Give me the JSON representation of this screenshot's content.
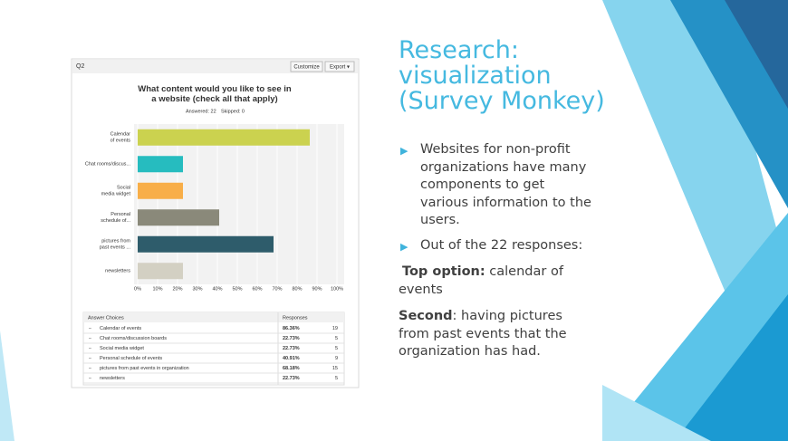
{
  "slide": {
    "title_lines": [
      "Research:",
      "visualization",
      "(Survey Monkey)"
    ],
    "bullets": [
      "Websites for non-profit organizations have many components to get various information to the users.",
      "Out of the 22 responses:"
    ],
    "paragraphs": [
      {
        "label": "Top option:",
        "text": " calendar of events"
      },
      {
        "label": "Second",
        "text": ": having pictures from past events that the organization has had."
      }
    ]
  },
  "survey": {
    "question_id": "Q2",
    "buttons": [
      "Customize",
      "Export ▾"
    ],
    "answered": "Answered: 22",
    "skipped": "Skipped: 0"
  },
  "chart_data": {
    "type": "bar",
    "orientation": "horizontal",
    "title": "What content would you like to see in a website (check all that apply)",
    "categories": [
      "Calendar of events",
      "Chat rooms/discus...",
      "Social media widget",
      "Personal schedule of...",
      "pictures from past events ...",
      "newsletters"
    ],
    "values": [
      86.36,
      22.73,
      22.73,
      40.91,
      68.18,
      22.73
    ],
    "colors": [
      "#cbd24f",
      "#26bcbf",
      "#f8ae48",
      "#8a897a",
      "#2e5c6b",
      "#d3d0c3"
    ],
    "xlim": [
      0,
      100
    ],
    "xticks": [
      {
        "value": 0,
        "label": "0%"
      },
      {
        "value": 10,
        "label": "10%"
      },
      {
        "value": 20,
        "label": "20%"
      },
      {
        "value": 30,
        "label": "30%"
      },
      {
        "value": 40,
        "label": "40%"
      },
      {
        "value": 50,
        "label": "50%"
      },
      {
        "value": 60,
        "label": "60%"
      },
      {
        "value": 70,
        "label": "70%"
      },
      {
        "value": 80,
        "label": "80%"
      },
      {
        "value": 90,
        "label": "90%"
      },
      {
        "value": 100,
        "label": "100%"
      }
    ],
    "grid": true
  },
  "table": {
    "header": [
      "Answer Choices",
      "Responses"
    ],
    "rows": [
      [
        "Calendar of events",
        "86.36%",
        19
      ],
      [
        "Chat rooms/discussion boards",
        "22.73%",
        5
      ],
      [
        "Social media widget",
        "22.73%",
        5
      ],
      [
        "Personal schedule of events",
        "40.91%",
        9
      ],
      [
        "pictures from past events in organization",
        "68.18%",
        15
      ],
      [
        "newsletters",
        "22.73%",
        5
      ]
    ]
  }
}
